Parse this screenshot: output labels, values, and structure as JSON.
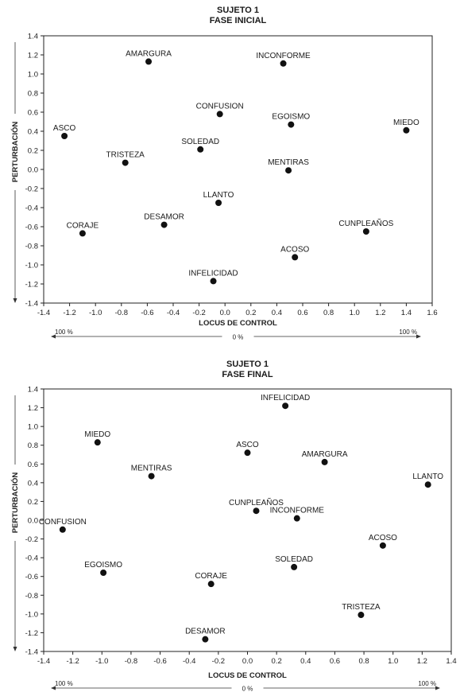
{
  "chart_data": [
    {
      "type": "scatter",
      "title": "SUJETO 1",
      "subtitle": "FASE INICIAL",
      "xlabel": "LOCUS DE CONTROL",
      "ylabel": "PERTURBACIÓN",
      "xlim": [
        -1.4,
        1.6
      ],
      "ylim": [
        -1.4,
        1.4
      ],
      "xticks": [
        "-1.4",
        "-1.2",
        "-1.0",
        "-0.8",
        "-0.6",
        "-0.4",
        "-0.2",
        "0.0",
        "0.2",
        "0.4",
        "0.6",
        "0.8",
        "1.0",
        "1.2",
        "1.4",
        "1.6"
      ],
      "yticks": [
        "1.4",
        "1.2",
        "1.0",
        "0.8",
        "0.6",
        "0.4",
        "0.2",
        "0.0",
        "-0.2",
        "-0.4",
        "-0.6",
        "-0.8",
        "-1.0",
        "-1.2",
        "-1.4"
      ],
      "scale_left": "100 %",
      "scale_center": "0 %",
      "scale_right": "100 %",
      "grid": false,
      "points": [
        {
          "label": "AMARGURA",
          "x": -0.59,
          "y": 1.13
        },
        {
          "label": "INCONFORME",
          "x": 0.45,
          "y": 1.11
        },
        {
          "label": "CONFUSION",
          "x": -0.04,
          "y": 0.58
        },
        {
          "label": "EGOISMO",
          "x": 0.51,
          "y": 0.47
        },
        {
          "label": "MIEDO",
          "x": 1.4,
          "y": 0.41
        },
        {
          "label": "ASCO",
          "x": -1.24,
          "y": 0.35
        },
        {
          "label": "SOLEDAD",
          "x": -0.19,
          "y": 0.21
        },
        {
          "label": "TRISTEZA",
          "x": -0.77,
          "y": 0.07
        },
        {
          "label": "MENTIRAS",
          "x": 0.49,
          "y": -0.01
        },
        {
          "label": "LLANTO",
          "x": -0.05,
          "y": -0.35
        },
        {
          "label": "DESAMOR",
          "x": -0.47,
          "y": -0.58
        },
        {
          "label": "CORAJE",
          "x": -1.1,
          "y": -0.67
        },
        {
          "label": "CUNPLEAÑOS",
          "x": 1.09,
          "y": -0.65
        },
        {
          "label": "ACOSO",
          "x": 0.54,
          "y": -0.92
        },
        {
          "label": "INFELICIDAD",
          "x": -0.09,
          "y": -1.17
        }
      ]
    },
    {
      "type": "scatter",
      "title": "SUJETO 1",
      "subtitle": "FASE FINAL",
      "xlabel": "LOCUS DE CONTROL",
      "ylabel": "PERTURBACIÓN",
      "xlim": [
        -1.4,
        1.4
      ],
      "ylim": [
        -1.4,
        1.4
      ],
      "xticks": [
        "-1.4",
        "-1.2",
        "-1.0",
        "-0.8",
        "-0.6",
        "-0.4",
        "-0.2",
        "0.0",
        "0.2",
        "0.4",
        "0.6",
        "0.8",
        "1.0",
        "1.2",
        "1.4"
      ],
      "yticks": [
        "1.4",
        "1.2",
        "1.0",
        "0.8",
        "0.6",
        "0.4",
        "0.2",
        "0.0",
        "-0.2",
        "-0.4",
        "-0.6",
        "-0.8",
        "-1.0",
        "-1.2",
        "-1.4"
      ],
      "scale_left": "100 %",
      "scale_center": "0 %",
      "scale_right": "100 %",
      "grid": false,
      "points": [
        {
          "label": "INFELICIDAD",
          "x": 0.26,
          "y": 1.22
        },
        {
          "label": "MIEDO",
          "x": -1.03,
          "y": 0.83
        },
        {
          "label": "ASCO",
          "x": 0.0,
          "y": 0.72
        },
        {
          "label": "AMARGURA",
          "x": 0.53,
          "y": 0.62
        },
        {
          "label": "MENTIRAS",
          "x": -0.66,
          "y": 0.47
        },
        {
          "label": "LLANTO",
          "x": 1.24,
          "y": 0.38
        },
        {
          "label": "CUNPLEAÑOS",
          "x": 0.06,
          "y": 0.1
        },
        {
          "label": "INCONFORME",
          "x": 0.34,
          "y": 0.02
        },
        {
          "label": "CONFUSION",
          "x": -1.27,
          "y": -0.1
        },
        {
          "label": "ACOSO",
          "x": 0.93,
          "y": -0.27
        },
        {
          "label": "SOLEDAD",
          "x": 0.32,
          "y": -0.5
        },
        {
          "label": "EGOISMO",
          "x": -0.99,
          "y": -0.56
        },
        {
          "label": "CORAJE",
          "x": -0.25,
          "y": -0.68
        },
        {
          "label": "TRISTEZA",
          "x": 0.78,
          "y": -1.01
        },
        {
          "label": "DESAMOR",
          "x": -0.29,
          "y": -1.27
        }
      ]
    }
  ]
}
